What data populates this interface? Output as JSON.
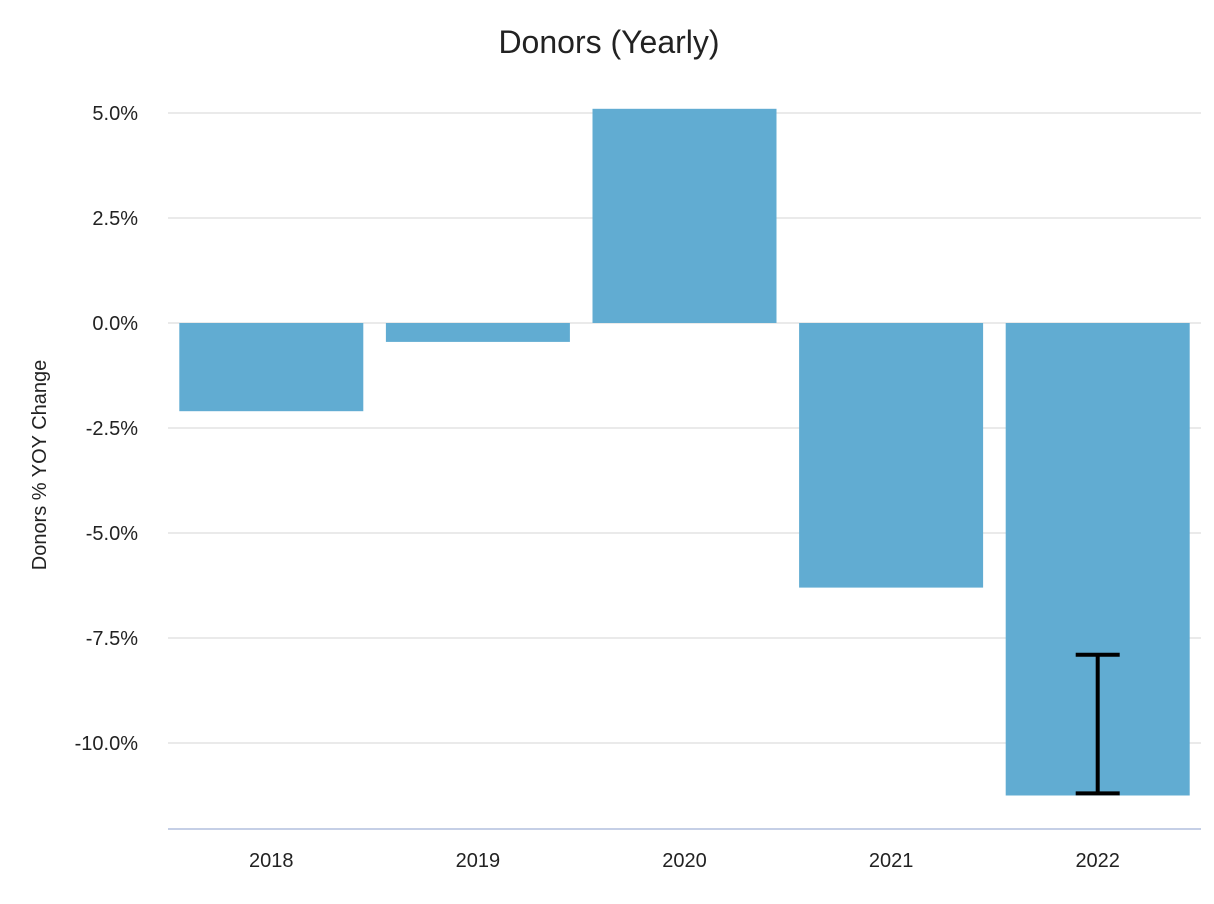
{
  "chart_data": {
    "type": "bar",
    "title": "Donors (Yearly)",
    "xlabel": "",
    "ylabel": "Donors % YOY Change",
    "categories": [
      "2018",
      "2019",
      "2020",
      "2021",
      "2022"
    ],
    "values": [
      -2.1,
      -0.45,
      5.1,
      -6.3,
      -11.25
    ],
    "ylim": [
      -12.0,
      5.5
    ],
    "yticks": [
      5.0,
      2.5,
      0.0,
      -2.5,
      -5.0,
      -7.5,
      -10.0
    ],
    "ytick_labels": [
      "5.0%",
      "2.5%",
      "0.0%",
      "-2.5%",
      "-5.0%",
      "-7.5%",
      "-10.0%"
    ],
    "grid": true,
    "legend": "none",
    "bar_color": "#61acd2",
    "error_bar": {
      "category": "2022",
      "low": -11.2,
      "high": -7.9,
      "color": "#000000"
    }
  }
}
